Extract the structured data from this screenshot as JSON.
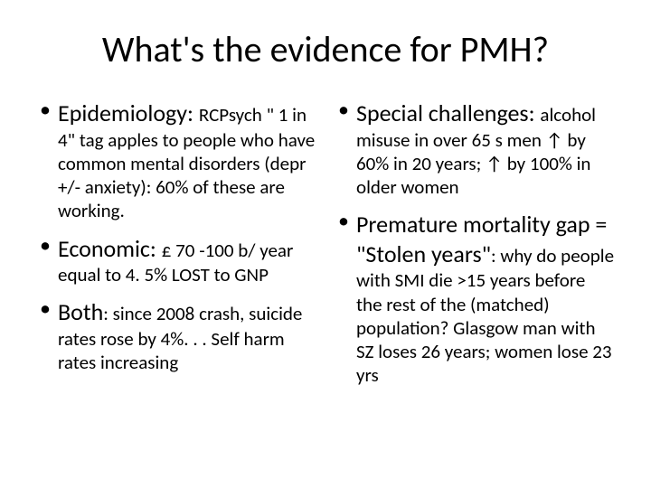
{
  "title": "What's the evidence for PMH?",
  "left": {
    "b1": {
      "lead": "Epidemiology: ",
      "mid": "RCPsych ",
      "body": "\" 1 in 4\" tag apples to people who have common mental disorders (depr +/- anxiety): 60% of these are working."
    },
    "b2": {
      "lead": "Economic: ",
      "body": "£ 70 -100 b/ year equal to 4. 5% LOST to GNP"
    },
    "b3": {
      "lead": "Both",
      "body": ": since 2008 crash, suicide rates rose by 4%. . . Self harm rates increasing"
    }
  },
  "right": {
    "b1": {
      "lead": "Special challenges: ",
      "body": "alcohol misuse in over 65 s men ↑ by 60% in 20 years; ↑ by 100% in older women"
    },
    "b2": {
      "lead": "Premature mortality gap = \"Stolen years\"",
      "body": ": why do people with SMI die >15 years before the rest of the (matched) population? Glasgow man with SZ loses 26 years; women lose 23 yrs"
    }
  }
}
